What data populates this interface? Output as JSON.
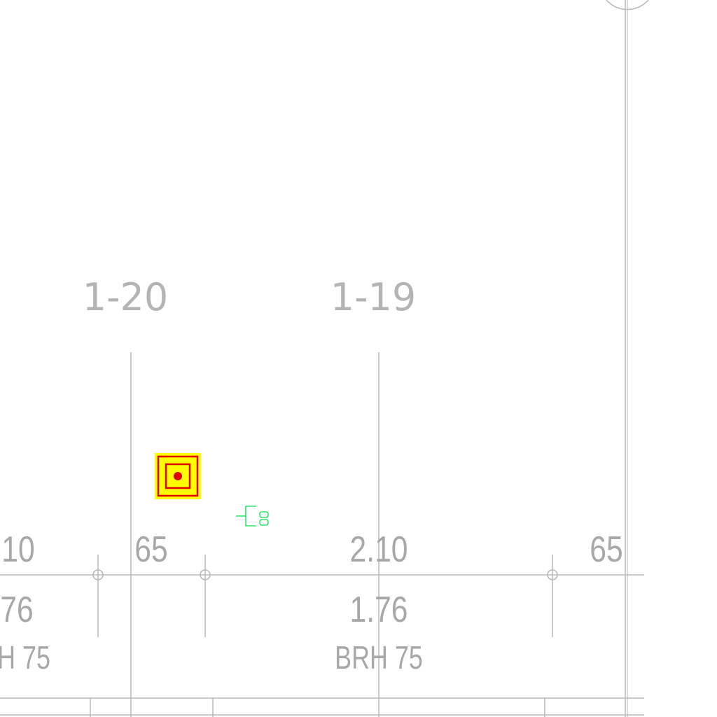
{
  "grid_labels": [
    {
      "id": "grid-1-20",
      "text": "1-20"
    },
    {
      "id": "grid-1-19",
      "text": "1-19"
    }
  ],
  "dimensions": {
    "top_row": [
      "10",
      "65",
      "2.10",
      "65"
    ],
    "height_row": [
      "76",
      "1.76"
    ],
    "sill_row": [
      "H 75",
      "BRH 75"
    ]
  },
  "symbols": {
    "target_marker": "target-square-icon",
    "outlet_symbol": "electrical-outlet-icon"
  },
  "colors": {
    "background": "#ffffff",
    "line": "#b8b8b8",
    "text": "#a8a8a8",
    "marker_fill": "#ffff00",
    "marker_stroke": "#e00000",
    "outlet": "#00e04a"
  }
}
